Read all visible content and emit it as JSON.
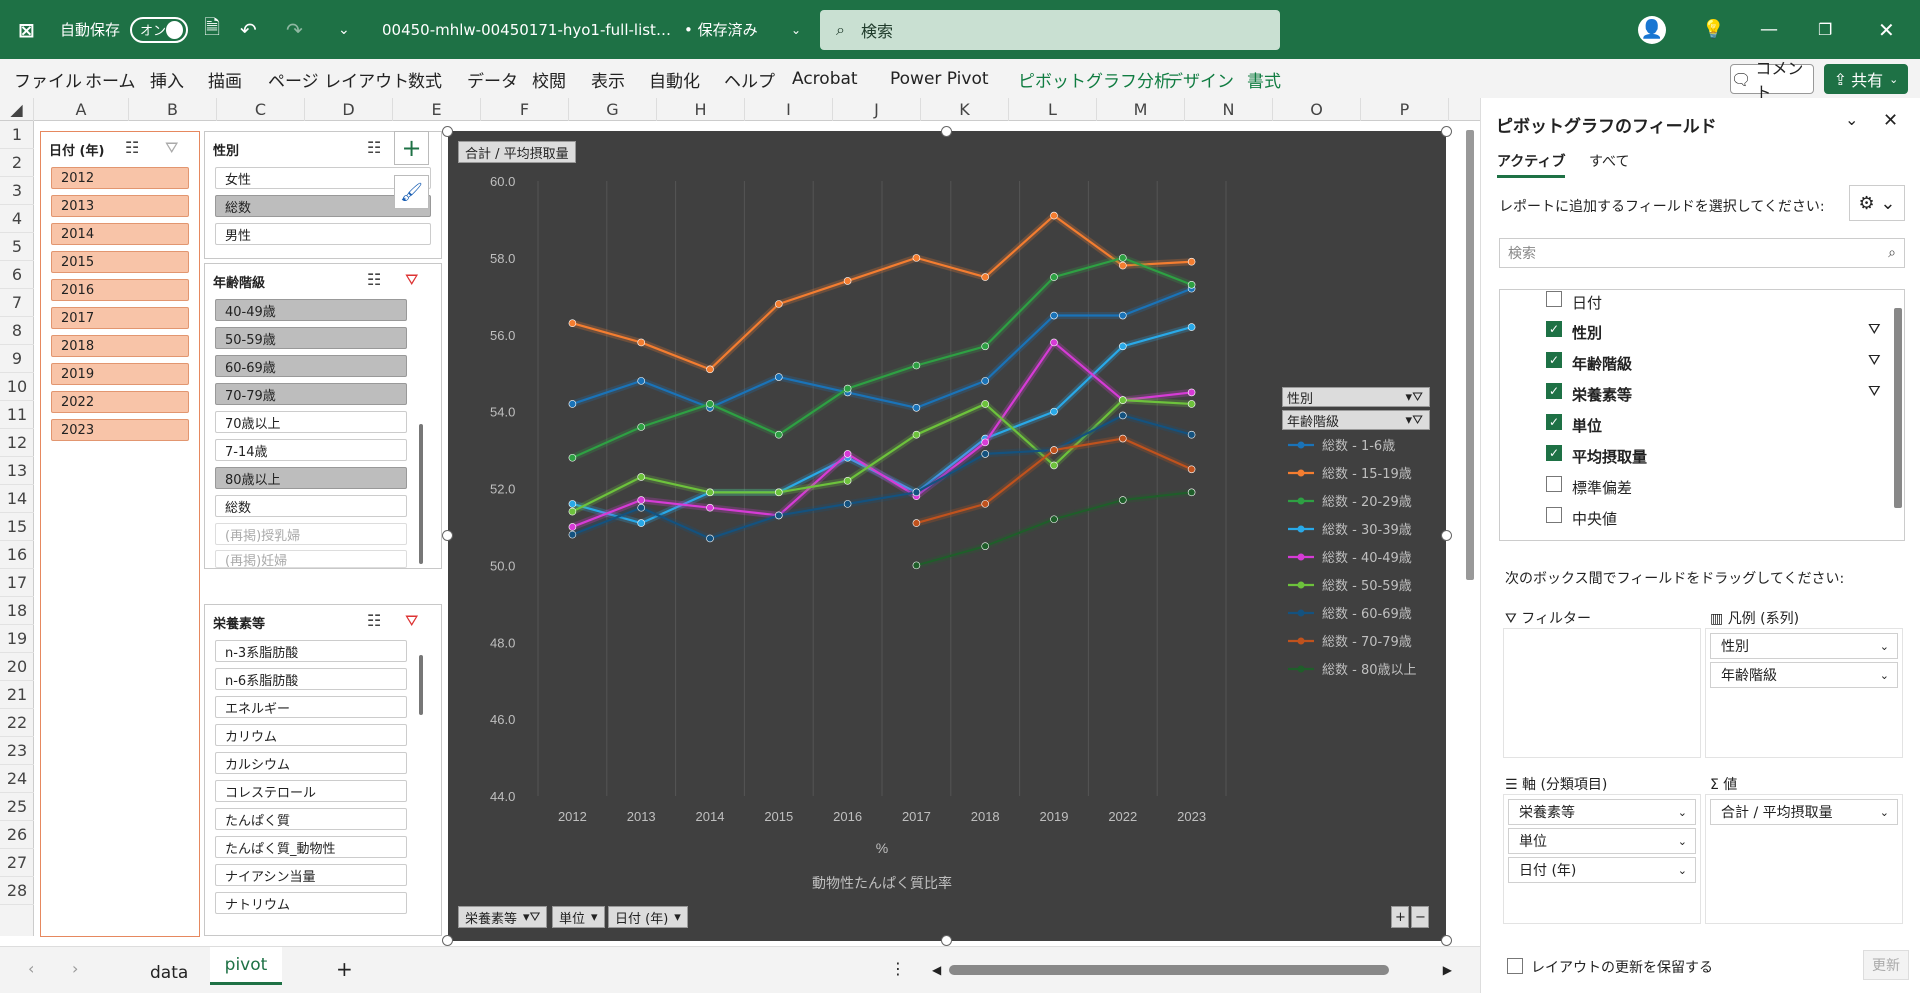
{
  "app": {
    "excel_icon": "excel-icon",
    "autosave_label": "自動保存",
    "toggle_label": "オン",
    "filename": "00450-mhlw-00450171-hyo1-full-list…",
    "save_status": "• 保存済み",
    "search_placeholder": "検索"
  },
  "menu": [
    "ファイル",
    "ホーム",
    "挿入",
    "描画",
    "ページ レイアウト",
    "数式",
    "データ",
    "校閲",
    "表示",
    "自動化",
    "ヘルプ",
    "Acrobat",
    "Power Pivot",
    "ピボットグラフ分析",
    "デザイン",
    "書式"
  ],
  "buttons": {
    "comment": "コメント",
    "share": "共有"
  },
  "columns": [
    "A",
    "B",
    "C",
    "D",
    "E",
    "F",
    "G",
    "H",
    "I",
    "J",
    "K",
    "L",
    "M",
    "N",
    "O",
    "P"
  ],
  "rows": [
    "1",
    "2",
    "3",
    "4",
    "5",
    "6",
    "7",
    "8",
    "9",
    "10",
    "11",
    "12",
    "13",
    "14",
    "15",
    "16",
    "17",
    "18",
    "19",
    "20",
    "21",
    "22",
    "23",
    "24",
    "25",
    "26",
    "27",
    "28"
  ],
  "slicers": {
    "year": {
      "title": "日付 (年)",
      "items": [
        "2012",
        "2013",
        "2014",
        "2015",
        "2016",
        "2017",
        "2018",
        "2019",
        "2022",
        "2023"
      ]
    },
    "sex": {
      "title": "性別",
      "items": [
        "女性",
        "総数",
        "男性"
      ]
    },
    "age": {
      "title": "年齢階級",
      "items": [
        "40-49歳",
        "50-59歳",
        "60-69歳",
        "70-79歳",
        "70歳以上",
        "7-14歳",
        "80歳以上",
        "総数",
        "(再掲)授乳婦",
        "(再掲)妊婦"
      ]
    },
    "nutrient": {
      "title": "栄養素等",
      "items": [
        "n-3系脂肪酸",
        "n-6系脂肪酸",
        "エネルギー",
        "カリウム",
        "カルシウム",
        "コレステロール",
        "たんぱく質",
        "たんぱく質_動物性",
        "ナイアシン当量",
        "ナトリウム"
      ]
    }
  },
  "chart": {
    "value_button": "合計 / 平均摂取量",
    "legend_filter1": "性別",
    "legend_filter2": "年齢階級",
    "axis_buttons": [
      "栄養素等",
      "単位",
      "日付 (年)"
    ]
  },
  "chart_data": {
    "type": "line",
    "categories": [
      "2012",
      "2013",
      "2014",
      "2015",
      "2016",
      "2017",
      "2018",
      "2019",
      "2022",
      "2023"
    ],
    "ylim": [
      44,
      60
    ],
    "yticks": [
      "60.0",
      "58.0",
      "56.0",
      "54.0",
      "52.0",
      "50.0",
      "48.0",
      "46.0",
      "44.0"
    ],
    "xlabel": "%",
    "subtitle": "動物性たんぱく質比率",
    "series": [
      {
        "name": "総数 - 1-6歳",
        "color": "#1a73b8",
        "values": [
          54.2,
          54.8,
          54.1,
          54.9,
          54.5,
          54.1,
          54.8,
          56.5,
          56.5,
          57.2
        ]
      },
      {
        "name": "総数 - 15-19歳",
        "color": "#f47d30",
        "values": [
          56.3,
          55.8,
          55.1,
          56.8,
          57.4,
          58.0,
          57.5,
          59.1,
          57.8,
          57.9
        ]
      },
      {
        "name": "総数 - 20-29歳",
        "color": "#2ea043",
        "values": [
          52.8,
          53.6,
          54.2,
          53.4,
          54.6,
          55.2,
          55.7,
          57.5,
          58.0,
          57.3
        ]
      },
      {
        "name": "総数 - 30-39歳",
        "color": "#29a9e8",
        "values": [
          51.6,
          51.1,
          51.9,
          51.9,
          52.8,
          51.9,
          53.3,
          54.0,
          55.7,
          56.2
        ]
      },
      {
        "name": "総数 - 40-49歳",
        "color": "#d63bd6",
        "values": [
          51.0,
          51.7,
          51.5,
          51.3,
          52.9,
          51.8,
          53.2,
          55.8,
          54.3,
          54.5
        ]
      },
      {
        "name": "総数 - 50-59歳",
        "color": "#6dc23c",
        "values": [
          51.4,
          52.3,
          51.9,
          51.9,
          52.2,
          53.4,
          54.2,
          52.6,
          54.3,
          54.2
        ]
      },
      {
        "name": "総数 - 60-69歳",
        "color": "#14527f",
        "values": [
          50.8,
          51.5,
          50.7,
          51.3,
          51.6,
          51.9,
          52.9,
          53.0,
          53.9,
          53.4
        ]
      },
      {
        "name": "総数 - 70-79歳",
        "color": "#c0521d",
        "values": [
          null,
          null,
          null,
          null,
          null,
          51.1,
          51.6,
          53.0,
          53.3,
          52.5
        ]
      },
      {
        "name": "総数 - 80歳以上",
        "color": "#1f5e2a",
        "values": [
          null,
          null,
          null,
          null,
          null,
          50.0,
          50.5,
          51.2,
          51.7,
          51.9
        ]
      }
    ]
  },
  "pane": {
    "title": "ピボットグラフのフィールド",
    "tab_active": "アクティブ",
    "tab_all": "すべて",
    "choose_text": "レポートに追加するフィールドを選択してください:",
    "search_placeholder": "検索",
    "fields": [
      {
        "label": "日付",
        "checked": false,
        "filter": false
      },
      {
        "label": "性別",
        "checked": true,
        "filter": true
      },
      {
        "label": "年齢階級",
        "checked": true,
        "filter": true
      },
      {
        "label": "栄養素等",
        "checked": true,
        "filter": true
      },
      {
        "label": "単位",
        "checked": true,
        "filter": false
      },
      {
        "label": "平均摂取量",
        "checked": true,
        "filter": false
      },
      {
        "label": "標準偏差",
        "checked": false,
        "filter": false
      },
      {
        "label": "中央値",
        "checked": false,
        "filter": false
      }
    ],
    "drag_text": "次のボックス間でフィールドをドラッグしてください:",
    "filter_label": "フィルター",
    "legend_label": "凡例 (系列)",
    "axis_label": "軸 (分類項目)",
    "values_label": "値",
    "legend_items": [
      "性別",
      "年齢階級"
    ],
    "axis_items": [
      "栄養素等",
      "単位",
      "日付 (年)"
    ],
    "value_items": [
      "合計 / 平均摂取量"
    ],
    "defer_label": "レイアウトの更新を保留する",
    "update_label": "更新"
  },
  "sheets": {
    "tab1": "data",
    "tab2": "pivot",
    "add": "+"
  }
}
